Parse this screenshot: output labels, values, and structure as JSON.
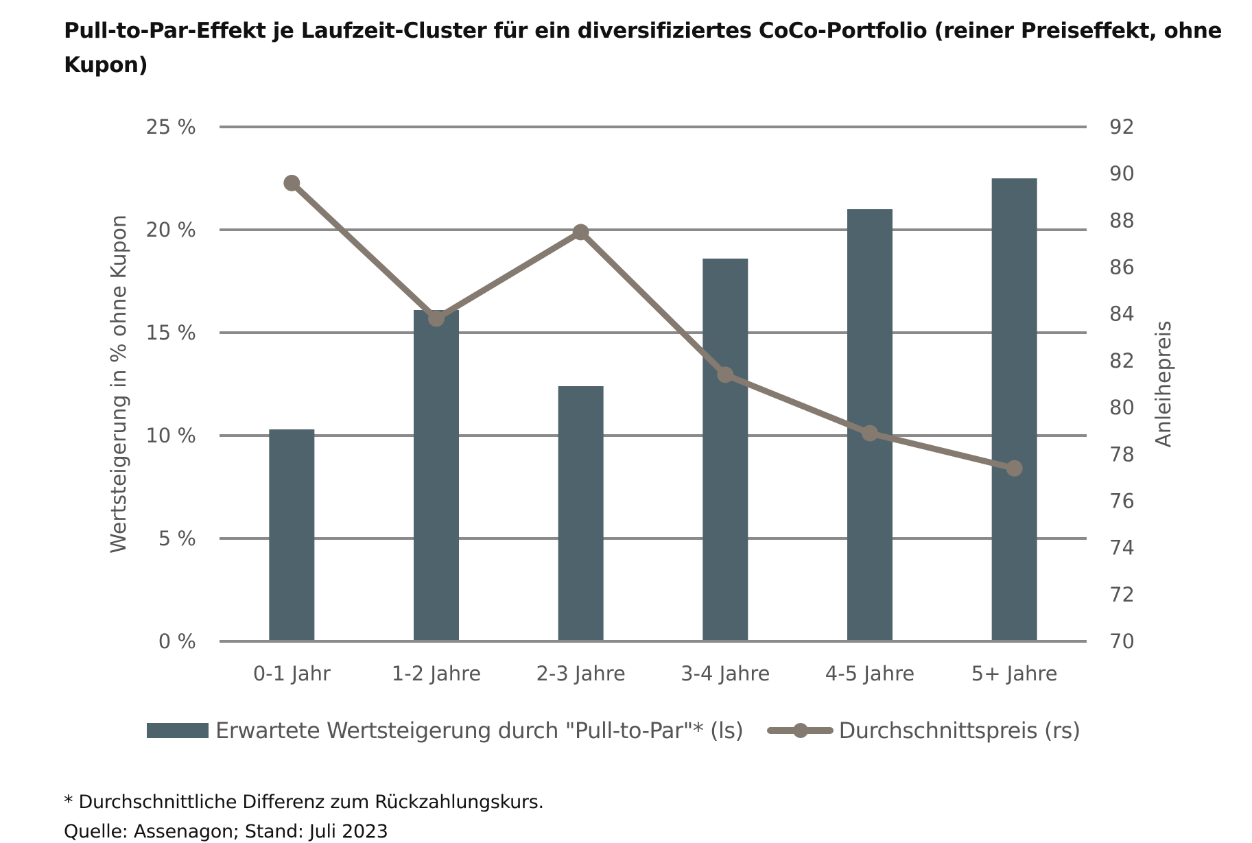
{
  "title": "Pull-to-Par-Effekt je Laufzeit-Cluster für ein diversifiziertes CoCo-Portfolio (reiner Preiseffekt, ohne Kupon)",
  "chart_data": {
    "type": "bar+line",
    "title": "Pull-to-Par-Effekt je Laufzeit-Cluster für ein diversifiziertes CoCo-Portfolio (reiner Preiseffekt, ohne Kupon)",
    "categories": [
      "0-1 Jahr",
      "1-2 Jahre",
      "2-3 Jahre",
      "3-4 Jahre",
      "4-5 Jahre",
      "5+ Jahre"
    ],
    "series": [
      {
        "name": "Erwartete Wertsteigerung durch \"Pull-to-Par\"* (ls)",
        "type": "bar",
        "axis": "left",
        "color": "#4f636c",
        "values": [
          10.3,
          16.1,
          12.4,
          18.6,
          21.0,
          22.5
        ]
      },
      {
        "name": "Durchschnittspreis (rs)",
        "type": "line",
        "axis": "right",
        "color": "#847a70",
        "values": [
          89.6,
          83.8,
          87.5,
          81.4,
          78.9,
          77.4
        ]
      }
    ],
    "ylabel": "Wertsteigerung in % ohne Kupon",
    "ylabel_right": "Anleihepreis",
    "ylim": [
      0,
      25
    ],
    "ylim_right": [
      70,
      92
    ],
    "yticks": [
      "0 %",
      "5 %",
      "10 %",
      "15 %",
      "20 %",
      "25 %"
    ],
    "yticks_right": [
      "70",
      "72",
      "74",
      "76",
      "78",
      "80",
      "82",
      "84",
      "86",
      "88",
      "90",
      "92"
    ],
    "grid": true,
    "legend": "bottom"
  },
  "footnotes": {
    "note": "* Durchschnittliche Differenz zum Rückzahlungskurs.",
    "source": "Quelle: Assenagon; Stand: Juli 2023"
  }
}
